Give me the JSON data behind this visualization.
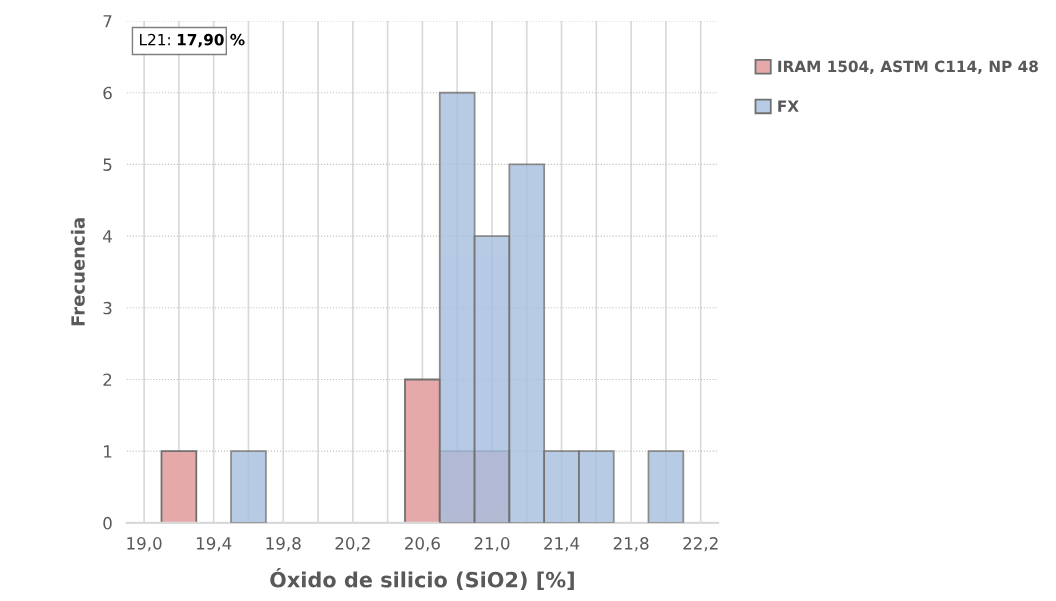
{
  "chart_data": {
    "type": "histogram",
    "xlabel": "Óxido de silicio (SiO2) [%]",
    "ylabel": "Frecuencia",
    "bins": [
      19.1,
      19.3,
      19.5,
      19.7,
      19.9,
      20.1,
      20.3,
      20.5,
      20.7,
      20.9,
      21.1,
      21.3,
      21.5,
      21.7,
      21.9,
      22.1
    ],
    "series": [
      {
        "name": "IRAM 1504, ASTM C114, NP 48",
        "color": "#e6a9a9",
        "values": [
          1,
          0,
          0,
          0,
          0,
          0,
          0,
          2,
          1,
          1,
          0,
          0,
          0,
          0,
          0
        ]
      },
      {
        "name": "FX",
        "color": "#a6bedf",
        "values": [
          0,
          0,
          1,
          0,
          0,
          0,
          0,
          0,
          6,
          4,
          5,
          1,
          1,
          0,
          1
        ]
      }
    ],
    "xlim": [
      18.9,
      22.3
    ],
    "xticks": [
      {
        "value": 19.0,
        "label": "19,0"
      },
      {
        "value": 19.2,
        "label": null
      },
      {
        "value": 19.4,
        "label": "19,4"
      },
      {
        "value": 19.6,
        "label": null
      },
      {
        "value": 19.8,
        "label": "19,8"
      },
      {
        "value": 20.0,
        "label": null
      },
      {
        "value": 20.2,
        "label": "20,2"
      },
      {
        "value": 20.4,
        "label": null
      },
      {
        "value": 20.6,
        "label": "20,6"
      },
      {
        "value": 20.8,
        "label": null
      },
      {
        "value": 21.0,
        "label": "21,0"
      },
      {
        "value": 21.2,
        "label": null
      },
      {
        "value": 21.4,
        "label": "21,4"
      },
      {
        "value": 21.6,
        "label": null
      },
      {
        "value": 21.8,
        "label": "21,8"
      },
      {
        "value": 22.0,
        "label": null
      },
      {
        "value": 22.2,
        "label": "22,2"
      }
    ],
    "ylim": [
      0,
      7
    ],
    "yticks": [
      0,
      1,
      2,
      3,
      4,
      5,
      6,
      7
    ],
    "grid": true,
    "legend": "top right",
    "annotations": [
      "L21:",
      "17,90 %"
    ]
  }
}
